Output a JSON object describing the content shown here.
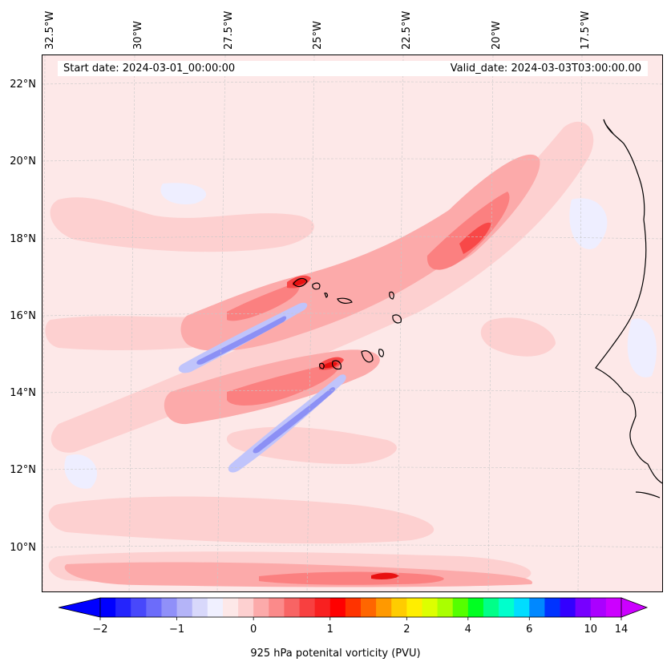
{
  "map": {
    "start_date": "Start date: 2024-03-01_00:00:00",
    "valid_date": "Valid_date: 2024-03-03T03:00:00.00",
    "lon_labels": [
      "32.5°W",
      "30°W",
      "27.5°W",
      "25°W",
      "22.5°W",
      "20°W",
      "17.5°W"
    ],
    "lat_labels": [
      "22°N",
      "20°N",
      "18°N",
      "16°N",
      "14°N",
      "12°N",
      "10°N"
    ],
    "colors": {
      "background": "#fde8e8",
      "light_pink": "#fdd0d0",
      "pink": "#fcaaaa",
      "salmon": "#fb8080",
      "red": "#f84848",
      "dark_red": "#e81010",
      "light_blue": "#e8e8ff",
      "blue": "#c0c4fb",
      "mid_blue": "#8c90f5",
      "coast": "#000000"
    }
  },
  "colorbar": {
    "title": "925 hPa potenital vorticity (PVU)",
    "tick_labels": [
      "−2",
      "−1",
      "0",
      "1",
      "2",
      "4",
      "6",
      "10",
      "14"
    ],
    "colors": [
      "#0000ff",
      "#2424fc",
      "#4848fb",
      "#6c6cfa",
      "#9090f9",
      "#b4b4f8",
      "#d8d8fb",
      "#f0f0ff",
      "#fde8e8",
      "#fdd0d0",
      "#fcaaaa",
      "#fb8a8a",
      "#f86464",
      "#f84040",
      "#f82020",
      "#ff0000",
      "#ff3300",
      "#ff6600",
      "#ff9900",
      "#ffcc00",
      "#ffee00",
      "#ddff00",
      "#aaff00",
      "#55ff00",
      "#00ff22",
      "#00ff88",
      "#00ffcc",
      "#00ddff",
      "#0088ff",
      "#0033ff",
      "#3300ff",
      "#7700ff",
      "#aa00ff",
      "#cc00ff"
    ],
    "extend_low_color": "#0000ff",
    "extend_high_color": "#cc00ff"
  }
}
